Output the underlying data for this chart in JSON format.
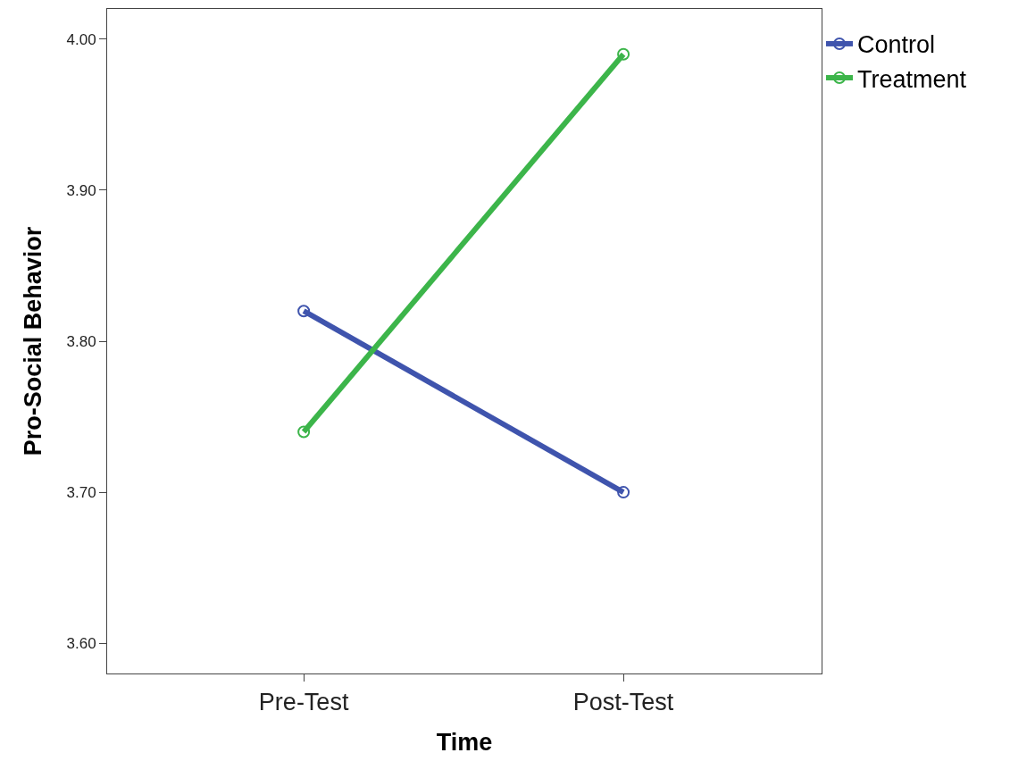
{
  "chart_data": {
    "type": "line",
    "xlabel": "Time",
    "ylabel": "Pro-Social Behavior",
    "categories": [
      "Pre-Test",
      "Post-Test"
    ],
    "series": [
      {
        "name": "Control",
        "color": "#3f54ad",
        "values": [
          3.82,
          3.7
        ]
      },
      {
        "name": "Treatment",
        "color": "#3cb54a",
        "values": [
          3.74,
          3.99
        ]
      }
    ],
    "ylim": [
      3.58,
      4.02
    ],
    "yticks": [
      {
        "value": 3.6,
        "label": "3.60"
      },
      {
        "value": 3.7,
        "label": "3.70"
      },
      {
        "value": 3.8,
        "label": "3.80"
      },
      {
        "value": 3.9,
        "label": "3.90"
      },
      {
        "value": 4.0,
        "label": "4.00"
      }
    ],
    "grid": false,
    "legend": "top right",
    "marker": "circle",
    "line_style": "solid"
  }
}
